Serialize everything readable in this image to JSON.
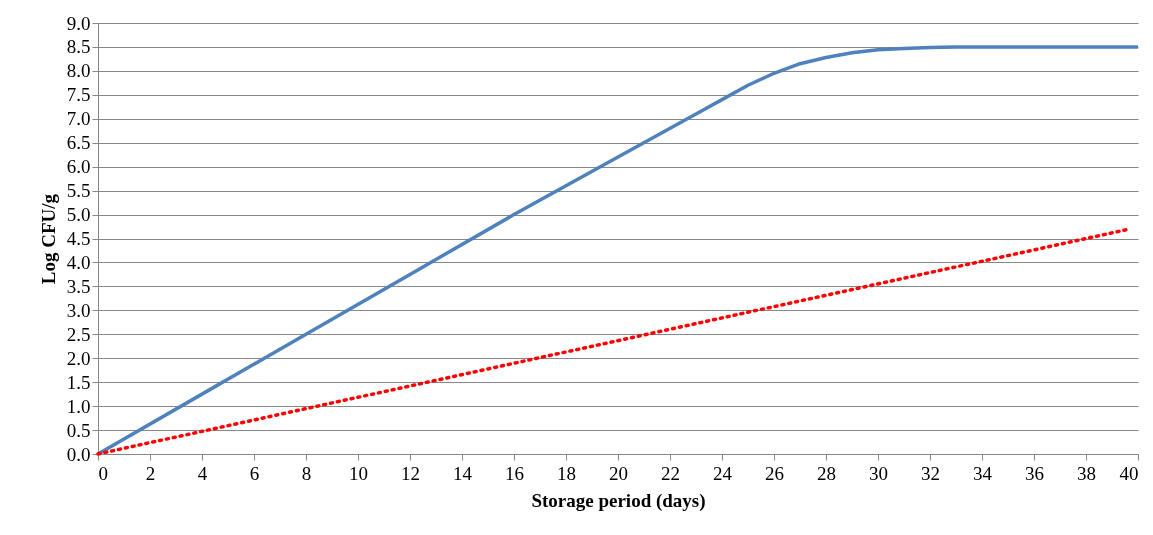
{
  "chart_data": {
    "type": "line",
    "xlabel": "Storage period (days)",
    "ylabel": "Log CFU/g",
    "xlim": [
      0,
      40
    ],
    "ylim": [
      0,
      9
    ],
    "xticks": [
      0,
      2,
      4,
      6,
      8,
      10,
      12,
      14,
      16,
      18,
      20,
      22,
      24,
      26,
      28,
      30,
      32,
      34,
      36,
      38,
      40
    ],
    "yticks": [
      {
        "value": 0,
        "label": "0.0"
      },
      0.5,
      {
        "value": 1,
        "label": "1.0"
      },
      1.5,
      {
        "value": 2,
        "label": "2.0"
      },
      2.5,
      {
        "value": 3,
        "label": "3.0"
      },
      3.5,
      {
        "value": 4,
        "label": "4.0"
      },
      4.5,
      {
        "value": 5,
        "label": "5.0"
      },
      5.5,
      {
        "value": 6,
        "label": "6.0"
      },
      6.5,
      {
        "value": 7,
        "label": "7.0"
      },
      7.5,
      {
        "value": 8,
        "label": "8.0"
      },
      8.5,
      {
        "value": 9,
        "label": "9.0"
      }
    ],
    "grid": "y",
    "marker": "none",
    "series": [
      {
        "color": "#4f81bd",
        "line_style": "solid",
        "x": [
          0,
          4,
          8,
          12,
          16,
          20,
          23,
          24,
          25,
          26,
          27,
          28,
          29,
          30,
          31,
          32,
          33,
          34,
          36,
          40
        ],
        "values": [
          0,
          1.25,
          2.5,
          3.75,
          5.0,
          6.2,
          7.1,
          7.4,
          7.7,
          7.95,
          8.15,
          8.28,
          8.38,
          8.44,
          8.47,
          8.49,
          8.5,
          8.5,
          8.5,
          8.5
        ]
      },
      {
        "color": "#ff0000",
        "line_style": "dotted",
        "x": [
          0,
          39.7
        ],
        "values": [
          0,
          4.7
        ]
      }
    ]
  }
}
